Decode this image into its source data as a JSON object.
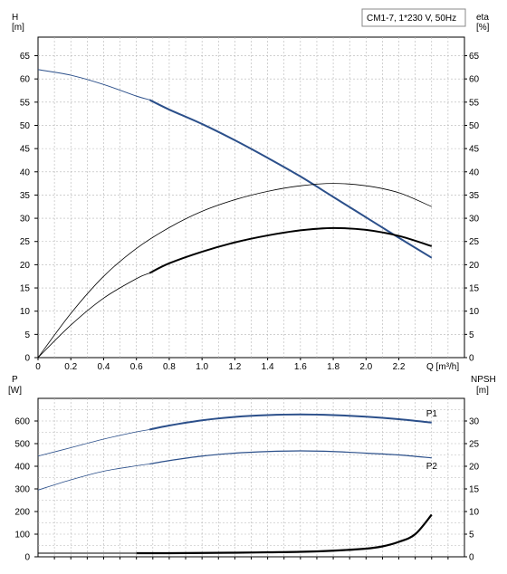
{
  "title_box": "CM1-7, 1*230 V, 50Hz",
  "chart_data": [
    {
      "type": "line",
      "panel": "top",
      "ylabel_left": "H",
      "ylabel_left_unit": "[m]",
      "ylabel_right": "eta",
      "ylabel_right_unit": "[%]",
      "xlabel": "Q [m³/h]",
      "xlim": [
        0,
        2.6
      ],
      "ylim": [
        0,
        69
      ],
      "x_ticks": [
        "0",
        "0.2",
        "0.4",
        "0.6",
        "0.8",
        "1.0",
        "1.2",
        "1.4",
        "1.6",
        "1.8",
        "2.0",
        "2.2"
      ],
      "y_ticks": [
        "0",
        "5",
        "10",
        "15",
        "20",
        "25",
        "30",
        "35",
        "40",
        "45",
        "50",
        "55",
        "60",
        "65"
      ],
      "grid": true,
      "series": [
        {
          "kind": "H",
          "color": "#2b4f8a",
          "x": [
            0,
            0.2,
            0.4,
            0.6,
            0.68,
            0.8,
            1.0,
            1.2,
            1.4,
            1.6,
            1.8,
            2.0,
            2.2,
            2.4
          ],
          "y": [
            62,
            60.8,
            58.8,
            56.3,
            55.5,
            53.4,
            50.3,
            46.8,
            43.0,
            39.0,
            34.6,
            30.2,
            25.8,
            21.5
          ]
        },
        {
          "kind": "eta_thin",
          "color": "#000000",
          "x": [
            0,
            0.2,
            0.4,
            0.6,
            0.8,
            1.0,
            1.2,
            1.4,
            1.6,
            1.8,
            2.0,
            2.2,
            2.4
          ],
          "y": [
            0,
            9.5,
            17.5,
            23.5,
            28.0,
            31.5,
            34.0,
            35.8,
            37.0,
            37.5,
            37.0,
            35.5,
            32.5
          ]
        },
        {
          "kind": "eta_thick",
          "color": "#000000",
          "x": [
            0,
            0.2,
            0.4,
            0.6,
            0.68,
            0.8,
            1.0,
            1.2,
            1.4,
            1.6,
            1.8,
            2.0,
            2.2,
            2.4
          ],
          "y": [
            0,
            7.0,
            12.8,
            17.0,
            18.2,
            20.3,
            22.8,
            24.8,
            26.3,
            27.4,
            27.9,
            27.5,
            26.2,
            24.0
          ]
        }
      ]
    },
    {
      "type": "line",
      "panel": "bottom",
      "ylabel_left": "P",
      "ylabel_left_unit": "[W]",
      "ylabel_right": "NPSH",
      "ylabel_right_unit": "[m]",
      "xlim": [
        0,
        2.6
      ],
      "ylim": [
        0,
        700
      ],
      "y_ticks_left": [
        "0",
        "100",
        "200",
        "300",
        "400",
        "500",
        "600"
      ],
      "y_ticks_right": [
        "0",
        "5",
        "10",
        "15",
        "20",
        "25",
        "30"
      ],
      "grid": true,
      "series": [
        {
          "name": "P1",
          "color": "#2b4f8a",
          "x": [
            0,
            0.2,
            0.4,
            0.6,
            0.68,
            0.8,
            1.0,
            1.2,
            1.4,
            1.6,
            1.8,
            2.0,
            2.2,
            2.4
          ],
          "y": [
            445,
            482,
            520,
            552,
            562,
            580,
            603,
            618,
            626,
            629,
            626,
            619,
            608,
            593
          ]
        },
        {
          "name": "P2",
          "color": "#2b4f8a",
          "x": [
            0,
            0.2,
            0.4,
            0.6,
            0.68,
            0.8,
            1.0,
            1.2,
            1.4,
            1.6,
            1.8,
            2.0,
            2.2,
            2.4
          ],
          "y": [
            295,
            340,
            378,
            402,
            410,
            425,
            445,
            458,
            465,
            468,
            465,
            458,
            450,
            437
          ]
        },
        {
          "kind": "NPSH",
          "color": "#000000",
          "x": [
            0,
            0.2,
            0.4,
            0.6,
            0.8,
            1.0,
            1.2,
            1.4,
            1.6,
            1.8,
            2.0,
            2.1,
            2.2,
            2.3,
            2.4
          ],
          "y": [
            0.8,
            0.8,
            0.8,
            0.8,
            0.8,
            0.85,
            0.9,
            1.0,
            1.1,
            1.35,
            1.8,
            2.3,
            3.3,
            5.0,
            9.3
          ]
        }
      ]
    }
  ]
}
